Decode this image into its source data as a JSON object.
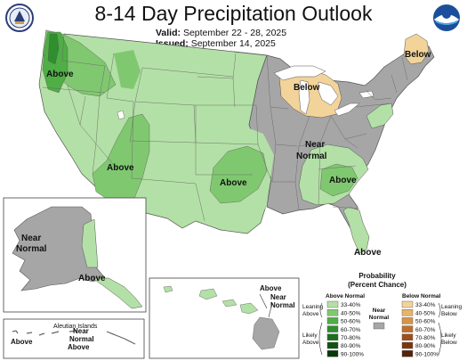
{
  "header": {
    "title": "8-14 Day Precipitation Outlook",
    "valid_label": "Valid:",
    "valid_dates": "September 22 - 28, 2025",
    "issued_label": "Issued:",
    "issued_date": "September 14, 2025"
  },
  "logos": {
    "left": "commerce-seal-icon",
    "right": "noaa-logo-icon"
  },
  "colors": {
    "above_33_40": "#b3e0a6",
    "above_40_50": "#80c870",
    "above_50_60": "#4fae45",
    "above_60_70": "#2f8f2f",
    "above_70_80": "#1d6e1d",
    "above_80_90": "#0f550f",
    "above_90_100": "#063a06",
    "below_33_40": "#f2d39a",
    "below_40_50": "#e6b46a",
    "below_50_60": "#d69448",
    "below_60_70": "#bf6f2c",
    "below_70_80": "#9d4f1d",
    "below_80_90": "#7a3612",
    "below_90_100": "#55220a",
    "near_normal": "#a6a6a6",
    "water": "#ffffff",
    "border": "#555555"
  },
  "map_labels": {
    "nw_above": "Above",
    "sw_above": "Above",
    "plains_above": "Above",
    "se_above": "Above",
    "fl_above": "Above",
    "lakes_below": "Below",
    "ne_below": "Below",
    "central_near": "Near",
    "central_normal": "Normal",
    "ak_near": "Near",
    "ak_normal": "Normal",
    "ak_above": "Above",
    "aleutian_title": "Aleutian Islands",
    "aleutian_above_w": "Above",
    "aleutian_near": "Near",
    "aleutian_normal": "Normal",
    "aleutian_above_e": "Above",
    "hi_above": "Above",
    "hi_near": "Near",
    "hi_normal": "Normal"
  },
  "legend": {
    "title_1": "Probability",
    "title_2": "(Percent Chance)",
    "above_heading": "Above Normal",
    "below_heading": "Below Normal",
    "near_heading_1": "Near",
    "near_heading_2": "Normal",
    "ranges": [
      "33-40%",
      "40-50%",
      "50-60%",
      "60-70%",
      "70-80%",
      "80-90%",
      "90-100%"
    ],
    "leaning_above_1": "Leaning",
    "leaning_above_2": "Above",
    "likely_above_1": "Likely",
    "likely_above_2": "Above",
    "leaning_below_1": "Leaning",
    "leaning_below_2": "Below",
    "likely_below_1": "Likely",
    "likely_below_2": "Below"
  }
}
